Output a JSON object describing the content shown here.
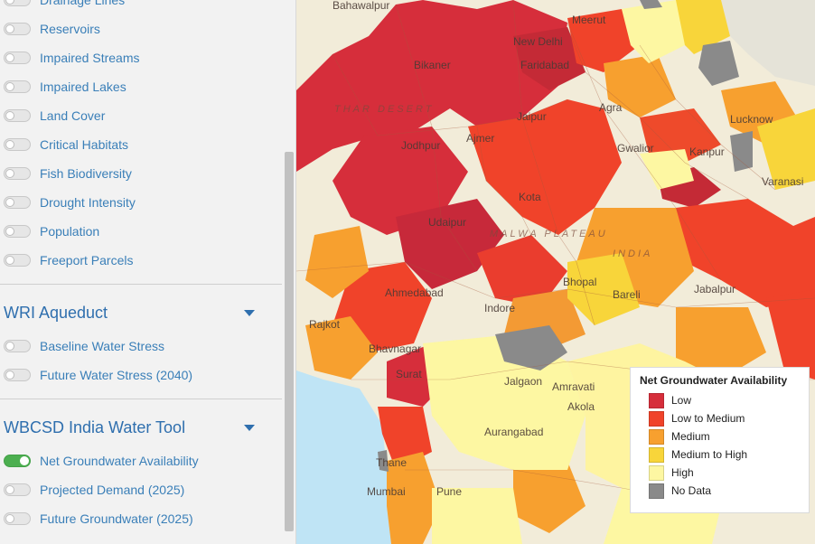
{
  "sidebar": {
    "layers_top": [
      {
        "label": "Drainage Lines",
        "on": false
      },
      {
        "label": "Reservoirs",
        "on": false
      },
      {
        "label": "Impaired Streams",
        "on": false
      },
      {
        "label": "Impaired Lakes",
        "on": false
      },
      {
        "label": "Land Cover",
        "on": false
      },
      {
        "label": "Critical Habitats",
        "on": false
      },
      {
        "label": "Fish Biodiversity",
        "on": false
      },
      {
        "label": "Drought Intensity",
        "on": false
      },
      {
        "label": "Population",
        "on": false
      },
      {
        "label": "Freeport Parcels",
        "on": false
      }
    ],
    "sections": [
      {
        "title": "WRI Aqueduct",
        "layers": [
          {
            "label": "Baseline Water Stress",
            "on": false
          },
          {
            "label": "Future Water Stress (2040)",
            "on": false
          }
        ]
      },
      {
        "title": "WBCSD India Water Tool",
        "layers": [
          {
            "label": "Net Groundwater Availability",
            "on": true
          },
          {
            "label": "Projected Demand (2025)",
            "on": false
          },
          {
            "label": "Future Groundwater (2025)",
            "on": false
          }
        ]
      }
    ]
  },
  "map": {
    "places": [
      "Bahawalpur",
      "Bikaner",
      "New Delhi",
      "Faridabad",
      "Meerut",
      "Jaipur",
      "Jodhpur",
      "Ajmer",
      "Kota",
      "Udaipur",
      "Agra",
      "Gwalior",
      "Lucknow",
      "Kanpur",
      "Ahmedabad",
      "Indore",
      "Bhopal",
      "Jabalpur",
      "Rajkot",
      "Bhavnagar",
      "Surat",
      "Jalgaon",
      "Amravati",
      "Akola",
      "Aurangabad",
      "Thane",
      "Mumbai",
      "Pune",
      "Varanasi",
      "Bareli"
    ],
    "regions": [
      "THAR DESERT",
      "MALWA PLATEAU",
      "INDIA"
    ]
  },
  "legend": {
    "title": "Net Groundwater Availability",
    "items": [
      {
        "label": "Low",
        "color": "#d62e3b"
      },
      {
        "label": "Low to Medium",
        "color": "#f0432a"
      },
      {
        "label": "Medium",
        "color": "#f7a02f"
      },
      {
        "label": "Medium to High",
        "color": "#f8d53a"
      },
      {
        "label": "High",
        "color": "#fdf7a2"
      },
      {
        "label": "No Data",
        "color": "#8a8a8a"
      }
    ]
  }
}
